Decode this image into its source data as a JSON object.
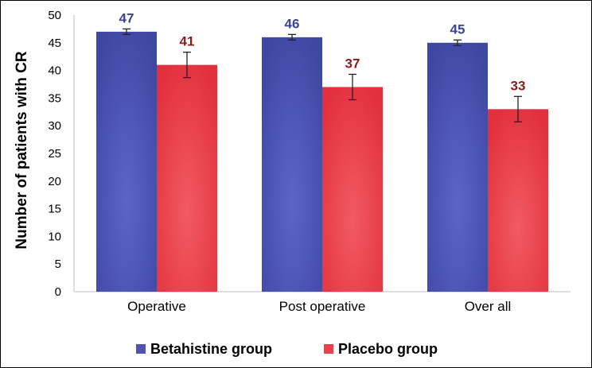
{
  "chart_data": {
    "type": "bar",
    "title": "",
    "xlabel": "",
    "ylabel": "Number of patients with CR",
    "ylim": [
      0,
      50
    ],
    "yticks": [
      0,
      5,
      10,
      15,
      20,
      25,
      30,
      35,
      40,
      45,
      50
    ],
    "grid": false,
    "legend_position": "bottom",
    "categories": [
      "Operative",
      "Post operative",
      "Over all"
    ],
    "series": [
      {
        "name": "Betahistine group",
        "color": "#4d55b0",
        "label_color": "#3b4496",
        "values": [
          47,
          46,
          45
        ],
        "error": [
          0.5,
          0.5,
          0.5
        ]
      },
      {
        "name": "Placebo group",
        "color": "#e8434d",
        "label_color": "#8e1a1a",
        "values": [
          41,
          37,
          33
        ],
        "error": [
          2.3,
          2.3,
          2.3
        ]
      }
    ]
  }
}
